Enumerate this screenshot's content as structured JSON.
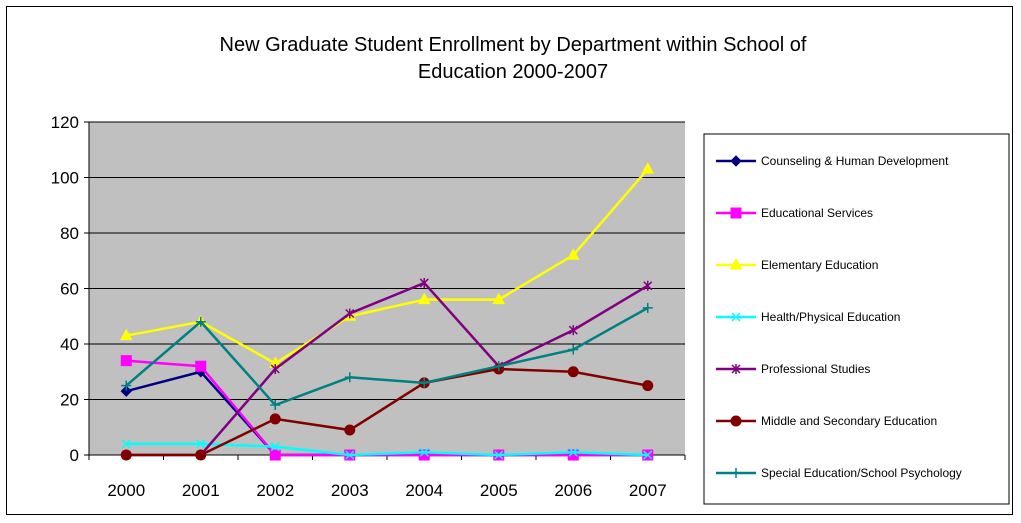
{
  "chart_data": {
    "type": "line",
    "title": "New Graduate Student Enrollment by Department within School of Education 2000-2007",
    "title_lines": [
      "New Graduate Student Enrollment by Department within School of",
      "Education 2000-2007"
    ],
    "xlabel": "",
    "ylabel": "",
    "categories": [
      "2000",
      "2001",
      "2002",
      "2003",
      "2004",
      "2005",
      "2006",
      "2007"
    ],
    "ylim": [
      0,
      120
    ],
    "yticks": [
      0,
      20,
      40,
      60,
      80,
      100,
      120
    ],
    "grid": "horizontal",
    "plot_background": "#c0c0c0",
    "legend_position": "right",
    "series": [
      {
        "name": "Counseling & Human Development",
        "color": "#000080",
        "marker": "diamond",
        "values": [
          23,
          30,
          0,
          0,
          0,
          0,
          0,
          0
        ]
      },
      {
        "name": "Educational Services",
        "color": "#ff00ff",
        "marker": "square",
        "values": [
          34,
          32,
          0,
          0,
          0,
          0,
          0,
          0
        ]
      },
      {
        "name": "Elementary Education",
        "color": "#ffff00",
        "marker": "triangle",
        "values": [
          43,
          48,
          33,
          50,
          56,
          56,
          72,
          103
        ]
      },
      {
        "name": "Health/Physical Education",
        "color": "#00ffff",
        "marker": "x",
        "values": [
          4,
          4,
          3,
          0,
          1,
          0,
          1,
          0
        ]
      },
      {
        "name": "Professional Studies",
        "color": "#800080",
        "marker": "star",
        "values": [
          0,
          0,
          31,
          51,
          62,
          32,
          45,
          61
        ]
      },
      {
        "name": "Middle and Secondary Education",
        "color": "#800000",
        "marker": "circle",
        "values": [
          0,
          0,
          13,
          9,
          26,
          31,
          30,
          25
        ]
      },
      {
        "name": "Special Education/School Psychology",
        "color": "#008080",
        "marker": "plus",
        "values": [
          25,
          48,
          18,
          28,
          26,
          32,
          38,
          53
        ]
      }
    ]
  }
}
